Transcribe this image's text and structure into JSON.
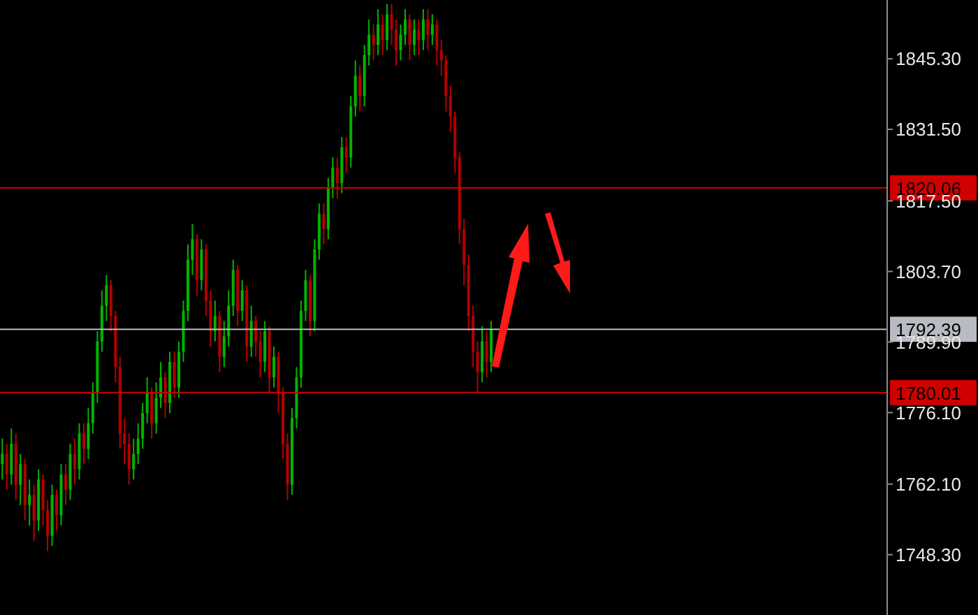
{
  "chart_data": {
    "type": "candlestick",
    "categories": [
      null,
      null,
      null,
      null,
      null,
      null,
      null,
      null,
      null,
      null,
      null,
      null,
      null,
      null,
      null,
      null,
      null,
      null,
      null,
      null,
      null,
      null,
      null,
      null,
      null,
      null,
      null,
      null,
      null,
      null,
      null,
      null,
      null,
      null,
      null,
      null,
      null,
      null,
      null,
      null,
      null,
      null,
      null,
      null,
      null,
      null,
      null,
      null,
      null,
      null,
      null,
      null,
      null,
      null,
      null,
      null,
      null,
      null,
      null,
      null,
      null,
      null,
      null,
      null,
      null,
      null,
      null,
      null,
      null,
      null,
      null,
      null,
      null,
      null,
      null,
      null,
      null,
      null,
      null,
      null,
      null,
      null,
      null,
      null,
      null,
      null,
      null,
      null,
      null,
      null,
      null,
      null,
      null,
      null,
      null,
      null,
      null,
      null,
      null,
      null,
      null,
      null,
      null,
      null,
      null,
      null,
      null,
      null,
      null,
      null,
      null,
      null,
      null,
      null,
      null,
      null,
      null,
      null,
      null,
      null,
      null,
      null,
      null,
      null,
      null,
      null,
      null,
      null,
      null,
      null,
      null,
      null,
      null,
      null,
      null,
      null,
      null,
      null,
      null,
      null,
      null,
      null,
      null,
      null,
      null,
      null,
      null,
      null,
      null,
      null,
      null,
      null,
      null,
      null,
      null,
      null,
      null,
      null,
      null,
      null,
      null,
      null,
      null,
      null,
      null,
      null,
      null,
      null,
      null,
      null,
      null,
      null,
      null,
      null,
      null,
      null,
      null,
      null,
      null,
      null,
      null,
      null,
      null,
      null,
      null,
      null,
      null,
      null,
      null,
      null,
      null,
      null,
      null,
      null,
      null,
      null
    ],
    "ohlc": [
      [
        1766,
        1771,
        1763,
        1768
      ],
      [
        1768,
        1770,
        1761,
        1764
      ],
      [
        1764,
        1773,
        1762,
        1770
      ],
      [
        1770,
        1772,
        1759,
        1762
      ],
      [
        1762,
        1768,
        1758,
        1766
      ],
      [
        1766,
        1767,
        1755,
        1758
      ],
      [
        1758,
        1763,
        1754,
        1760
      ],
      [
        1760,
        1762,
        1751,
        1755
      ],
      [
        1755,
        1765,
        1753,
        1763
      ],
      [
        1763,
        1764,
        1754,
        1757
      ],
      [
        1757,
        1759,
        1749,
        1752
      ],
      [
        1752,
        1762,
        1750,
        1760
      ],
      [
        1760,
        1761,
        1753,
        1756
      ],
      [
        1756,
        1766,
        1754,
        1764
      ],
      [
        1764,
        1766,
        1758,
        1761
      ],
      [
        1761,
        1770,
        1759,
        1768
      ],
      [
        1768,
        1771,
        1762,
        1765
      ],
      [
        1765,
        1774,
        1763,
        1772
      ],
      [
        1772,
        1774,
        1766,
        1769
      ],
      [
        1769,
        1777,
        1767,
        1774
      ],
      [
        1774,
        1782,
        1772,
        1780
      ],
      [
        1780,
        1792,
        1778,
        1790
      ],
      [
        1790,
        1800,
        1788,
        1797
      ],
      [
        1797,
        1803,
        1794,
        1801
      ],
      [
        1801,
        1802,
        1792,
        1795
      ],
      [
        1795,
        1796,
        1782,
        1785
      ],
      [
        1785,
        1787,
        1769,
        1772
      ],
      [
        1772,
        1775,
        1766,
        1770
      ],
      [
        1770,
        1772,
        1762,
        1765
      ],
      [
        1765,
        1771,
        1763,
        1768
      ],
      [
        1768,
        1774,
        1766,
        1771
      ],
      [
        1771,
        1778,
        1769,
        1776
      ],
      [
        1776,
        1783,
        1774,
        1780
      ],
      [
        1780,
        1781,
        1771,
        1774
      ],
      [
        1774,
        1782,
        1772,
        1779
      ],
      [
        1779,
        1786,
        1777,
        1783
      ],
      [
        1783,
        1784,
        1775,
        1778
      ],
      [
        1778,
        1788,
        1776,
        1786
      ],
      [
        1786,
        1788,
        1779,
        1781
      ],
      [
        1781,
        1790,
        1779,
        1788
      ],
      [
        1788,
        1798,
        1786,
        1796
      ],
      [
        1796,
        1809,
        1794,
        1806
      ],
      [
        1806,
        1813,
        1803,
        1810
      ],
      [
        1810,
        1811,
        1799,
        1802
      ],
      [
        1802,
        1810,
        1800,
        1808
      ],
      [
        1808,
        1809,
        1795,
        1798
      ],
      [
        1798,
        1800,
        1789,
        1792
      ],
      [
        1792,
        1798,
        1790,
        1795
      ],
      [
        1795,
        1796,
        1784,
        1787
      ],
      [
        1787,
        1794,
        1785,
        1791
      ],
      [
        1791,
        1800,
        1789,
        1797
      ],
      [
        1797,
        1806,
        1795,
        1804
      ],
      [
        1804,
        1805,
        1793,
        1796
      ],
      [
        1796,
        1802,
        1794,
        1800
      ],
      [
        1800,
        1801,
        1786,
        1789
      ],
      [
        1789,
        1797,
        1787,
        1794
      ],
      [
        1794,
        1795,
        1787,
        1790
      ],
      [
        1790,
        1792,
        1783,
        1786
      ],
      [
        1786,
        1794,
        1784,
        1792
      ],
      [
        1792,
        1793,
        1780,
        1783
      ],
      [
        1783,
        1789,
        1781,
        1787
      ],
      [
        1787,
        1788,
        1776,
        1780
      ],
      [
        1780,
        1781,
        1767,
        1770
      ],
      [
        1770,
        1772,
        1759,
        1762
      ],
      [
        1762,
        1777,
        1760,
        1775
      ],
      [
        1775,
        1785,
        1773,
        1783
      ],
      [
        1783,
        1798,
        1781,
        1796
      ],
      [
        1796,
        1804,
        1794,
        1802
      ],
      [
        1802,
        1803,
        1791,
        1794
      ],
      [
        1794,
        1810,
        1792,
        1808
      ],
      [
        1808,
        1817,
        1806,
        1815
      ],
      [
        1815,
        1817,
        1809,
        1812
      ],
      [
        1812,
        1822,
        1810,
        1820
      ],
      [
        1820,
        1826,
        1818,
        1824
      ],
      [
        1824,
        1826,
        1818,
        1821
      ],
      [
        1821,
        1830,
        1819,
        1828
      ],
      [
        1828,
        1830,
        1823,
        1826
      ],
      [
        1826,
        1838,
        1824,
        1836
      ],
      [
        1836,
        1845,
        1834,
        1842
      ],
      [
        1842,
        1844,
        1835,
        1838
      ],
      [
        1838,
        1848,
        1836,
        1846
      ],
      [
        1846,
        1853,
        1844,
        1850
      ],
      [
        1850,
        1852,
        1845,
        1848
      ],
      [
        1848,
        1855,
        1846,
        1852
      ],
      [
        1852,
        1854,
        1846,
        1849
      ],
      [
        1849,
        1856,
        1847,
        1854
      ],
      [
        1854,
        1856,
        1848,
        1851
      ],
      [
        1851,
        1853,
        1844,
        1847
      ],
      [
        1847,
        1852,
        1845,
        1850
      ],
      [
        1850,
        1855,
        1848,
        1853
      ],
      [
        1853,
        1854,
        1845,
        1848
      ],
      [
        1848,
        1853,
        1846,
        1851
      ],
      [
        1851,
        1853,
        1846,
        1849
      ],
      [
        1849,
        1855,
        1847,
        1853
      ],
      [
        1853,
        1855,
        1847,
        1850
      ],
      [
        1850,
        1854,
        1848,
        1852
      ],
      [
        1852,
        1853,
        1844,
        1847
      ],
      [
        1847,
        1849,
        1842,
        1845
      ],
      [
        1845,
        1846,
        1835,
        1838
      ],
      [
        1838,
        1840,
        1831,
        1834
      ],
      [
        1834,
        1835,
        1823,
        1826
      ],
      [
        1826,
        1827,
        1809,
        1812
      ],
      [
        1812,
        1814,
        1801,
        1805
      ],
      [
        1805,
        1807,
        1792,
        1795
      ],
      [
        1795,
        1797,
        1785,
        1788
      ],
      [
        1788,
        1790,
        1780,
        1784
      ],
      [
        1784,
        1793,
        1782,
        1790
      ],
      [
        1790,
        1792,
        1783,
        1786
      ],
      [
        1786,
        1794,
        1784,
        1792.39
      ],
      null,
      null,
      null,
      null,
      null,
      null,
      null,
      null,
      null,
      null,
      null,
      null,
      null,
      null,
      null,
      null,
      null,
      null,
      null,
      null,
      null,
      null,
      null,
      null,
      null,
      null,
      null,
      null,
      null,
      null,
      null,
      null,
      null,
      null,
      null,
      null,
      null,
      null,
      null,
      null,
      null,
      null,
      null,
      null,
      null,
      null,
      null,
      null,
      null,
      null,
      null,
      null,
      null,
      null,
      null,
      null,
      null,
      null,
      null,
      null,
      null,
      null,
      null,
      null,
      null,
      null,
      null,
      null,
      null,
      null,
      null,
      null,
      null,
      null,
      null,
      null,
      null,
      null,
      null,
      null,
      null,
      null,
      null,
      null,
      null,
      null,
      null
    ],
    "colors": [
      "#00b400",
      "#b40000",
      "#00b400",
      "#b40000",
      "#00b400",
      "#b40000",
      "#00b400",
      "#b40000",
      "#00b400",
      "#b40000",
      "#b40000",
      "#00b400",
      "#b40000",
      "#00b400",
      "#b40000",
      "#00b400",
      "#b40000",
      "#00b400",
      "#b40000",
      "#00b400",
      "#00b400",
      "#00b400",
      "#00b400",
      "#00b400",
      "#b40000",
      "#b40000",
      "#b40000",
      "#b40000",
      "#b40000",
      "#00b400",
      "#00b400",
      "#00b400",
      "#00b400",
      "#b40000",
      "#00b400",
      "#00b400",
      "#b40000",
      "#00b400",
      "#b40000",
      "#00b400",
      "#00b400",
      "#00b400",
      "#00b400",
      "#b40000",
      "#00b400",
      "#b40000",
      "#b40000",
      "#00b400",
      "#b40000",
      "#00b400",
      "#00b400",
      "#00b400",
      "#b40000",
      "#00b400",
      "#b40000",
      "#00b400",
      "#b40000",
      "#b40000",
      "#00b400",
      "#b40000",
      "#00b400",
      "#b40000",
      "#b40000",
      "#b40000",
      "#00b400",
      "#00b400",
      "#00b400",
      "#00b400",
      "#b40000",
      "#00b400",
      "#00b400",
      "#b40000",
      "#00b400",
      "#00b400",
      "#b40000",
      "#00b400",
      "#b40000",
      "#00b400",
      "#00b400",
      "#b40000",
      "#00b400",
      "#00b400",
      "#b40000",
      "#00b400",
      "#b40000",
      "#00b400",
      "#b40000",
      "#b40000",
      "#00b400",
      "#00b400",
      "#b40000",
      "#00b400",
      "#b40000",
      "#00b400",
      "#b40000",
      "#00b400",
      "#b40000",
      "#b40000",
      "#b40000",
      "#b40000",
      "#b40000",
      "#b40000",
      "#b40000",
      "#b40000",
      "#b40000",
      "#b40000",
      "#00b400",
      "#b40000",
      "#00b400",
      null,
      null,
      null,
      null,
      null,
      null,
      null,
      null,
      null,
      null,
      null,
      null,
      null,
      null,
      null,
      null,
      null,
      null,
      null,
      null,
      null,
      null,
      null,
      null,
      null,
      null,
      null,
      null,
      null,
      null,
      null,
      null,
      null,
      null,
      null,
      null,
      null,
      null,
      null,
      null,
      null,
      null,
      null,
      null,
      null,
      null,
      null,
      null,
      null,
      null,
      null,
      null,
      null,
      null,
      null,
      null,
      null,
      null,
      null,
      null,
      null,
      null,
      null,
      null,
      null,
      null,
      null,
      null,
      null,
      null,
      null,
      null,
      null,
      null,
      null,
      null,
      null,
      null,
      null,
      null,
      null,
      null,
      null,
      null,
      null,
      null,
      null
    ],
    "ylim": [
      1736.5,
      1856.8
    ],
    "yticks": [
      {
        "value": 1748.3,
        "label": "1748.30"
      },
      {
        "value": 1762.1,
        "label": "1762.10"
      },
      {
        "value": 1776.1,
        "label": "1776.10"
      },
      {
        "value": 1789.9,
        "label": "1789.90"
      },
      {
        "value": 1803.7,
        "label": "1803.70"
      },
      {
        "value": 1817.5,
        "label": "1817.50"
      },
      {
        "value": 1831.5,
        "label": "1831.50"
      },
      {
        "value": 1845.3,
        "label": "1845.30"
      }
    ],
    "ref_lines": [
      {
        "axis": "y",
        "value": 1820.06,
        "label": "1820.06",
        "color": "#d00000"
      },
      {
        "axis": "y",
        "value": 1792.39,
        "label": "1792.39",
        "color": "#b8bcc2"
      },
      {
        "axis": "y",
        "value": 1780.01,
        "label": "1780.01",
        "color": "#d00000"
      }
    ],
    "tick_labels": "y",
    "grid": false,
    "legend": false
  }
}
